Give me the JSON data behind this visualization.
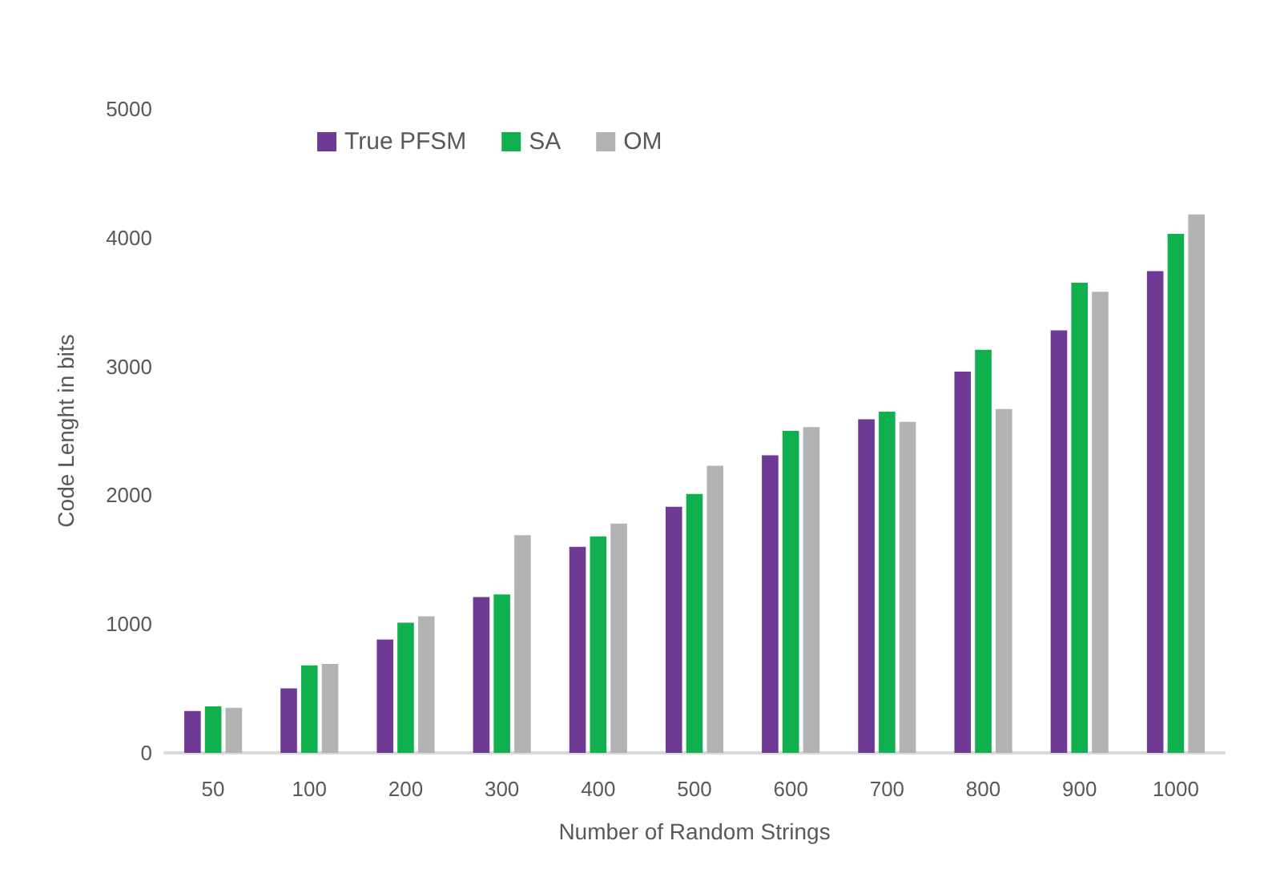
{
  "chart_data": {
    "type": "bar",
    "xlabel": "Number of Random Strings",
    "ylabel": "Code Lenght in bits",
    "categories": [
      "50",
      "100",
      "200",
      "300",
      "400",
      "500",
      "600",
      "700",
      "800",
      "900",
      "1000"
    ],
    "series": [
      {
        "name": "True PFSM",
        "color": "#6f3a93",
        "values": [
          325,
          500,
          880,
          1210,
          1600,
          1910,
          2310,
          2590,
          2960,
          3280,
          3740
        ]
      },
      {
        "name": "SA",
        "color": "#10b04e",
        "values": [
          360,
          680,
          1010,
          1230,
          1680,
          2010,
          2500,
          2650,
          3130,
          3650,
          4030
        ]
      },
      {
        "name": "OM",
        "color": "#b3b3b3",
        "values": [
          350,
          690,
          1060,
          1690,
          1780,
          2230,
          2530,
          2570,
          2670,
          3580,
          4180
        ]
      }
    ],
    "ylim": [
      0,
      5000
    ],
    "yticks": [
      0,
      1000,
      2000,
      3000,
      4000,
      5000
    ],
    "grid": false,
    "legend": "top left"
  }
}
